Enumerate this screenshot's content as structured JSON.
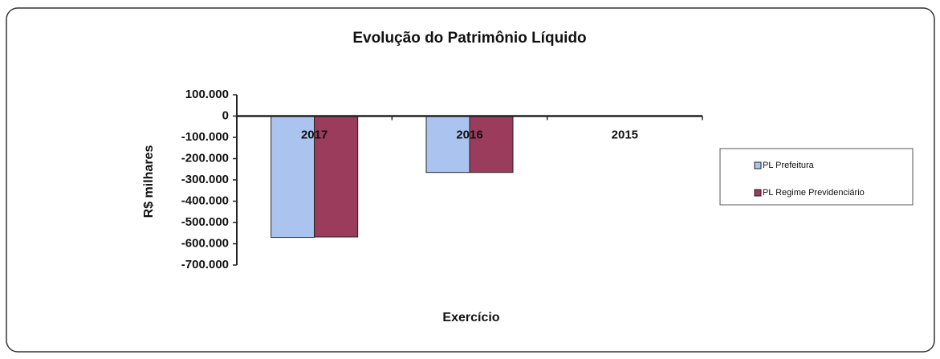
{
  "chart_data": {
    "type": "bar",
    "title": "Evolução do Patrimônio Líquido",
    "categories": [
      "2017",
      "2016",
      "2015"
    ],
    "series": [
      {
        "name": "PL Prefeitura",
        "color": "#aac4ef",
        "values": [
          -570000,
          -265000,
          null
        ]
      },
      {
        "name": "PL Regime Previdenciário",
        "color": "#9c3c5c",
        "values": [
          -568000,
          -265000,
          null
        ]
      }
    ],
    "ylim": [
      -700000,
      100000
    ],
    "yticks": [
      {
        "value": 100000,
        "label": "100.000"
      },
      0,
      {
        "value": -100000,
        "label": "-100.000"
      },
      {
        "value": -200000,
        "label": "-200.000"
      },
      {
        "value": -300000,
        "label": "-300.000"
      },
      {
        "value": -400000,
        "label": "-400.000"
      },
      {
        "value": -500000,
        "label": "-500.000"
      },
      {
        "value": -600000,
        "label": "-600.000"
      },
      {
        "value": -700000,
        "label": "-700.000"
      }
    ],
    "ylabel": "R$ milhares",
    "xlabel": "Exercício",
    "legend": "right",
    "grid": false
  }
}
